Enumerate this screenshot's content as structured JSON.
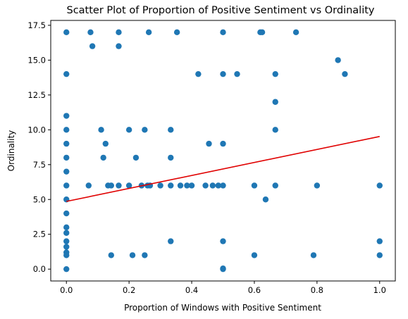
{
  "chart_data": {
    "type": "scatter",
    "title": "Scatter Plot of Proportion of Positive Sentiment vs Ordinality",
    "xlabel": "Proportion of Windows with Positive Sentiment",
    "ylabel": "Ordinality",
    "xlim": [
      -0.05,
      1.05
    ],
    "ylim": [
      -0.85,
      17.85
    ],
    "xticks": [
      {
        "value": 0.0,
        "label": "0.0"
      },
      {
        "value": 0.2,
        "label": "0.2"
      },
      {
        "value": 0.4,
        "label": "0.4"
      },
      {
        "value": 0.6,
        "label": "0.6"
      },
      {
        "value": 0.8,
        "label": "0.8"
      },
      {
        "value": 1.0,
        "label": "1.0"
      }
    ],
    "yticks": [
      {
        "value": 0.0,
        "label": "0.0"
      },
      {
        "value": 2.5,
        "label": "2.5"
      },
      {
        "value": 5.0,
        "label": "5.0"
      },
      {
        "value": 7.5,
        "label": "7.5"
      },
      {
        "value": 10.0,
        "label": "10.0"
      },
      {
        "value": 12.5,
        "label": "12.5"
      },
      {
        "value": 15.0,
        "label": "15.0"
      },
      {
        "value": 17.5,
        "label": "17.5"
      }
    ],
    "grid": false,
    "point_color": "#1f77b4",
    "trend_color": "#e00000",
    "points": [
      [
        0.0,
        17
      ],
      [
        0.077,
        17
      ],
      [
        0.083,
        16
      ],
      [
        0.167,
        17
      ],
      [
        0.167,
        16
      ],
      [
        0.263,
        17
      ],
      [
        0.353,
        17
      ],
      [
        0.5,
        17
      ],
      [
        0.619,
        17
      ],
      [
        0.625,
        17
      ],
      [
        0.733,
        17
      ],
      [
        0.867,
        15
      ],
      [
        0.889,
        14
      ],
      [
        0.0,
        14
      ],
      [
        0.421,
        14
      ],
      [
        0.5,
        14
      ],
      [
        0.545,
        14
      ],
      [
        0.667,
        14
      ],
      [
        0.667,
        12
      ],
      [
        0.0,
        11
      ],
      [
        0.111,
        10
      ],
      [
        0.2,
        10
      ],
      [
        0.25,
        10
      ],
      [
        0.333,
        10
      ],
      [
        0.667,
        10
      ],
      [
        0.0,
        10
      ],
      [
        0.0,
        9
      ],
      [
        0.125,
        9
      ],
      [
        0.455,
        9
      ],
      [
        0.5,
        9
      ],
      [
        0.0,
        8
      ],
      [
        0.118,
        8
      ],
      [
        0.222,
        8
      ],
      [
        0.333,
        8
      ],
      [
        0.0,
        7
      ],
      [
        0.0,
        6
      ],
      [
        0.071,
        6
      ],
      [
        0.133,
        6
      ],
      [
        0.143,
        6
      ],
      [
        0.167,
        6
      ],
      [
        0.2,
        6
      ],
      [
        0.24,
        6
      ],
      [
        0.259,
        6
      ],
      [
        0.267,
        6
      ],
      [
        0.3,
        6
      ],
      [
        0.333,
        6
      ],
      [
        0.364,
        6
      ],
      [
        0.385,
        6
      ],
      [
        0.4,
        6
      ],
      [
        0.444,
        6
      ],
      [
        0.467,
        6
      ],
      [
        0.485,
        6
      ],
      [
        0.5,
        6
      ],
      [
        0.6,
        6
      ],
      [
        0.667,
        6
      ],
      [
        0.8,
        6
      ],
      [
        1.0,
        6
      ],
      [
        0.636,
        5
      ],
      [
        0.0,
        5
      ],
      [
        0.0,
        4
      ],
      [
        0.0,
        3
      ],
      [
        0.0,
        2.6
      ],
      [
        0.0,
        2
      ],
      [
        0.0,
        1.6
      ],
      [
        0.0,
        1.2
      ],
      [
        0.0,
        1
      ],
      [
        0.0,
        0
      ],
      [
        0.333,
        2
      ],
      [
        0.5,
        2
      ],
      [
        1.0,
        2
      ],
      [
        0.143,
        1
      ],
      [
        0.211,
        1
      ],
      [
        0.25,
        1
      ],
      [
        0.6,
        1
      ],
      [
        0.789,
        1
      ],
      [
        1.0,
        1
      ],
      [
        0.5,
        0
      ],
      [
        0.5,
        0.05
      ]
    ],
    "trend_line": {
      "slope": 4.66,
      "intercept": 4.86,
      "x_range": [
        0.0,
        1.0
      ]
    }
  }
}
